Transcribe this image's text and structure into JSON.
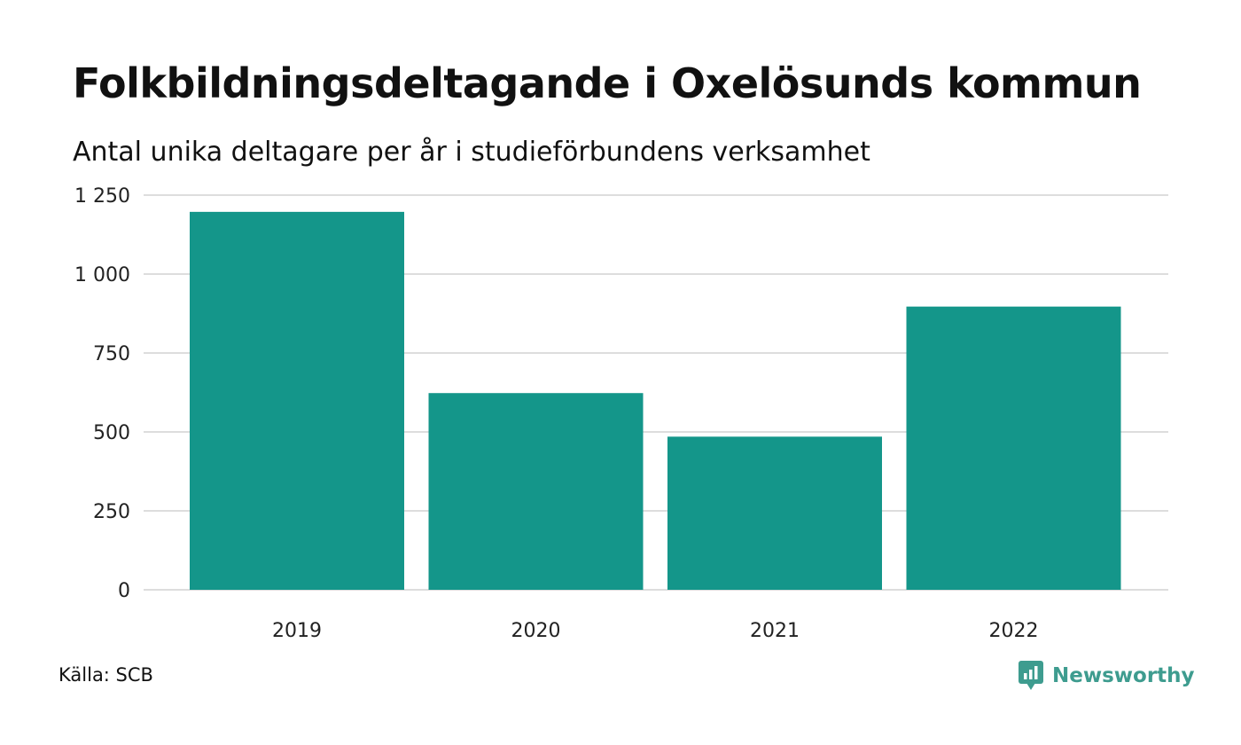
{
  "header": {
    "title": "Folkbildningsdeltagande i Oxelösunds kommun",
    "subtitle": "Antal unika deltagare per år i studieförbundens verksamhet"
  },
  "footer": {
    "source": "Källa: SCB",
    "brand": "Newsworthy",
    "brand_icon": "newsworthy-logo-icon"
  },
  "colors": {
    "bar": "#14968a",
    "grid": "#dddddd",
    "brand": "#3e9c8f"
  },
  "chart_data": {
    "type": "bar",
    "title": "Folkbildningsdeltagande i Oxelösunds kommun",
    "subtitle": "Antal unika deltagare per år i studieförbundens verksamhet",
    "categories": [
      "2019",
      "2020",
      "2021",
      "2022"
    ],
    "values": [
      1197,
      623,
      485,
      897
    ],
    "yticks": [
      0,
      250,
      500,
      750,
      1000,
      1250
    ],
    "ytick_labels": [
      "0",
      "250",
      "500",
      "750",
      "1 000",
      "1 250"
    ],
    "ylim": [
      0,
      1250
    ],
    "xlabel": "",
    "ylabel": "",
    "grid": true,
    "legend": false
  }
}
